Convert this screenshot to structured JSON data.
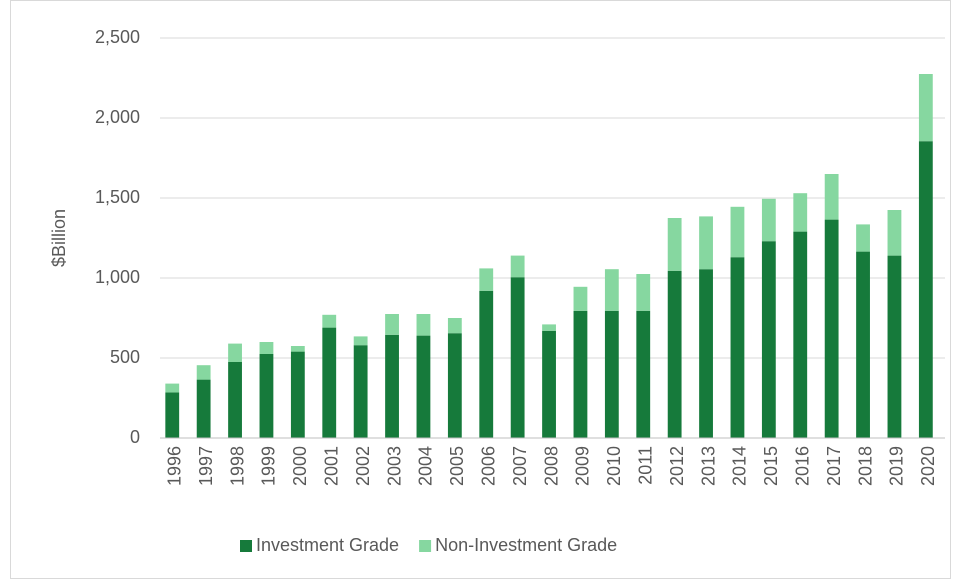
{
  "chart_data": {
    "type": "stacked_bar",
    "y_label": "$Billion",
    "categories": [
      "1996",
      "1997",
      "1998",
      "1999",
      "2000",
      "2001",
      "2002",
      "2003",
      "2004",
      "2005",
      "2006",
      "2007",
      "2008",
      "2009",
      "2010",
      "2011",
      "2012",
      "2013",
      "2014",
      "2015",
      "2016",
      "2017",
      "2018",
      "2019",
      "2020"
    ],
    "series": [
      {
        "name": "Investment Grade",
        "color": "#167a3b",
        "values": [
          285,
          365,
          475,
          525,
          540,
          690,
          580,
          645,
          640,
          655,
          920,
          1005,
          670,
          795,
          795,
          795,
          1045,
          1055,
          1130,
          1230,
          1290,
          1365,
          1165,
          1140,
          1855
        ]
      },
      {
        "name": "Non-Investment Grade",
        "color": "#86d7a0",
        "values": [
          55,
          90,
          115,
          75,
          35,
          80,
          55,
          130,
          135,
          95,
          140,
          135,
          40,
          150,
          260,
          230,
          330,
          330,
          315,
          265,
          240,
          285,
          170,
          285,
          420
        ]
      }
    ],
    "ylim": [
      0,
      2500
    ],
    "yticks": [
      0,
      500,
      {
        "value": 1000,
        "label": "1,000"
      },
      {
        "value": 1500,
        "label": "1,500"
      },
      {
        "value": 2000,
        "label": "2,000"
      },
      {
        "value": 2500,
        "label": "2,500"
      }
    ],
    "grid": true,
    "legend": "bottom"
  }
}
